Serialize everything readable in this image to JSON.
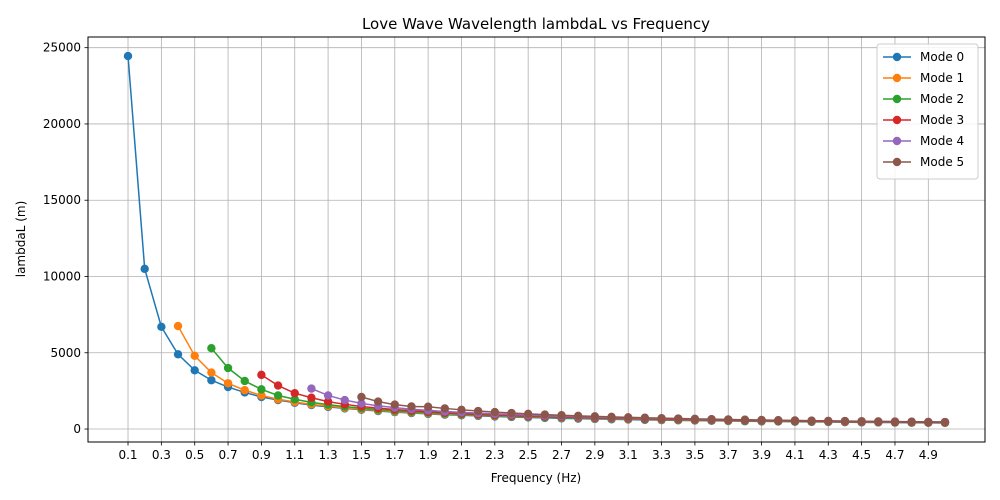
{
  "chart_data": {
    "type": "line",
    "title": "Love Wave Wavelength lambdaL vs Frequency",
    "xlabel": "Frequency (Hz)",
    "ylabel": "lambdaL (m)",
    "xlim": [
      -0.14,
      5.24
    ],
    "ylim": [
      -850,
      25700
    ],
    "xticks": [
      "0.1",
      "0.3",
      "0.5",
      "0.7",
      "0.9",
      "1.1",
      "1.3",
      "1.5",
      "1.7",
      "1.9",
      "2.1",
      "2.3",
      "2.5",
      "2.7",
      "2.9",
      "3.1",
      "3.3",
      "3.5",
      "3.7",
      "3.9",
      "4.1",
      "4.3",
      "4.5",
      "4.7",
      "4.9"
    ],
    "yticks": [
      "0",
      "5000",
      "10000",
      "15000",
      "20000",
      "25000"
    ],
    "grid": true,
    "legend_position": "top-right",
    "marker": "circle",
    "series": [
      {
        "name": "Mode 0",
        "color": "#1f77b4",
        "x": [
          0.1,
          0.2,
          0.3,
          0.4,
          0.5,
          0.6,
          0.7,
          0.8,
          0.9,
          1.0,
          1.1,
          1.2,
          1.3,
          1.4,
          1.5,
          1.6,
          1.7,
          1.8,
          1.9,
          2.0,
          2.1,
          2.2,
          2.3,
          2.4,
          2.5,
          2.6,
          2.7,
          2.8,
          2.9,
          3.0,
          3.1,
          3.2,
          3.3,
          3.4,
          3.5,
          3.6,
          3.7,
          3.8,
          3.9,
          4.0,
          4.1,
          4.2,
          4.3,
          4.4,
          4.5,
          4.6,
          4.7,
          4.8,
          4.9,
          5.0
        ],
        "y": [
          24450,
          10500,
          6700,
          4900,
          3850,
          3200,
          2750,
          2400,
          2100,
          1900,
          1720,
          1570,
          1450,
          1350,
          1260,
          1180,
          1110,
          1050,
          990,
          940,
          900,
          860,
          820,
          790,
          760,
          730,
          700,
          680,
          660,
          640,
          620,
          600,
          585,
          570,
          555,
          540,
          525,
          512,
          500,
          490,
          478,
          468,
          458,
          448,
          438,
          430,
          422,
          414,
          406,
          398
        ]
      },
      {
        "name": "Mode 1",
        "color": "#ff7f0e",
        "x": [
          0.4,
          0.5,
          0.6,
          0.7,
          0.8,
          0.9,
          1.0,
          1.1,
          1.2,
          1.3,
          1.4,
          1.5,
          1.6,
          1.7,
          1.8,
          1.9,
          2.0,
          2.1,
          2.2,
          2.3,
          2.4,
          2.5,
          2.6,
          2.7,
          2.8,
          2.9,
          3.0,
          3.1,
          3.2,
          3.3,
          3.4,
          3.5,
          3.6,
          3.7,
          3.8,
          3.9,
          4.0,
          4.1,
          4.2,
          4.3,
          4.4,
          4.5,
          4.6,
          4.7,
          4.8,
          4.9,
          5.0
        ],
        "y": [
          6750,
          4800,
          3700,
          3000,
          2550,
          2200,
          1950,
          1770,
          1620,
          1500,
          1390,
          1300,
          1220,
          1150,
          1090,
          1030,
          980,
          940,
          900,
          860,
          830,
          800,
          770,
          740,
          715,
          690,
          670,
          650,
          630,
          610,
          595,
          580,
          565,
          550,
          537,
          525,
          513,
          502,
          491,
          480,
          470,
          460,
          451,
          442,
          433,
          425,
          417
        ]
      },
      {
        "name": "Mode 2",
        "color": "#2ca02c",
        "x": [
          0.6,
          0.7,
          0.8,
          0.9,
          1.0,
          1.1,
          1.2,
          1.3,
          1.4,
          1.5,
          1.6,
          1.7,
          1.8,
          1.9,
          2.0,
          2.1,
          2.2,
          2.3,
          2.4,
          2.5,
          2.6,
          2.7,
          2.8,
          2.9,
          3.0,
          3.1,
          3.2,
          3.3,
          3.4,
          3.5,
          3.6,
          3.7,
          3.8,
          3.9,
          4.0,
          4.1,
          4.2,
          4.3,
          4.4,
          4.5,
          4.6,
          4.7,
          4.8,
          4.9,
          5.0
        ],
        "y": [
          5300,
          4000,
          3150,
          2600,
          2200,
          1950,
          1750,
          1600,
          1470,
          1370,
          1280,
          1200,
          1130,
          1070,
          1020,
          970,
          930,
          890,
          855,
          820,
          790,
          760,
          735,
          710,
          690,
          670,
          650,
          630,
          612,
          595,
          580,
          565,
          550,
          537,
          525,
          513,
          502,
          491,
          480,
          470,
          460,
          450,
          441,
          432,
          424
        ]
      },
      {
        "name": "Mode 3",
        "color": "#d62728",
        "x": [
          0.9,
          1.0,
          1.1,
          1.2,
          1.3,
          1.4,
          1.5,
          1.6,
          1.7,
          1.8,
          1.9,
          2.0,
          2.1,
          2.2,
          2.3,
          2.4,
          2.5,
          2.6,
          2.7,
          2.8,
          2.9,
          3.0,
          3.1,
          3.2,
          3.3,
          3.4,
          3.5,
          3.6,
          3.7,
          3.8,
          3.9,
          4.0,
          4.1,
          4.2,
          4.3,
          4.4,
          4.5,
          4.6,
          4.7,
          4.8,
          4.9,
          5.0
        ],
        "y": [
          3550,
          2850,
          2350,
          2050,
          1800,
          1620,
          1480,
          1370,
          1280,
          1200,
          1130,
          1070,
          1020,
          970,
          930,
          890,
          855,
          825,
          795,
          768,
          742,
          718,
          695,
          675,
          655,
          636,
          618,
          601,
          585,
          570,
          556,
          542,
          529,
          517,
          505,
          494,
          483,
          473,
          463,
          454,
          445,
          436
        ]
      },
      {
        "name": "Mode 4",
        "color": "#9467bd",
        "x": [
          1.2,
          1.3,
          1.4,
          1.5,
          1.6,
          1.7,
          1.8,
          1.9,
          2.0,
          2.1,
          2.2,
          2.3,
          2.4,
          2.5,
          2.6,
          2.7,
          2.8,
          2.9,
          3.0,
          3.1,
          3.2,
          3.3,
          3.4,
          3.5,
          3.6,
          3.7,
          3.8,
          3.9,
          4.0,
          4.1,
          4.2,
          4.3,
          4.4,
          4.5,
          4.6,
          4.7,
          4.8,
          4.9,
          5.0
        ],
        "y": [
          2650,
          2200,
          1900,
          1680,
          1520,
          1400,
          1300,
          1220,
          1150,
          1090,
          1040,
          990,
          950,
          910,
          875,
          842,
          812,
          784,
          758,
          734,
          711,
          690,
          670,
          651,
          633,
          616,
          600,
          585,
          571,
          557,
          544,
          532,
          520,
          509,
          498,
          488,
          478,
          468,
          459
        ]
      },
      {
        "name": "Mode 5",
        "color": "#8c564b",
        "x": [
          1.5,
          1.6,
          1.7,
          1.8,
          1.9,
          2.0,
          2.1,
          2.2,
          2.3,
          2.4,
          2.5,
          2.6,
          2.7,
          2.8,
          2.9,
          3.0,
          3.1,
          3.2,
          3.3,
          3.4,
          3.5,
          3.6,
          3.7,
          3.8,
          3.9,
          4.0,
          4.1,
          4.2,
          4.3,
          4.4,
          4.5,
          4.6,
          4.7,
          4.8,
          4.9,
          5.0
        ],
        "y": [
          2100,
          1800,
          1600,
          1480,
          1460,
          1350,
          1260,
          1180,
          1110,
          1050,
          995,
          948,
          905,
          866,
          830,
          797,
          767,
          739,
          713,
          689,
          667,
          646,
          627,
          609,
          592,
          576,
          561,
          547,
          534,
          521,
          509,
          498,
          487,
          477,
          467,
          458
        ]
      }
    ]
  }
}
